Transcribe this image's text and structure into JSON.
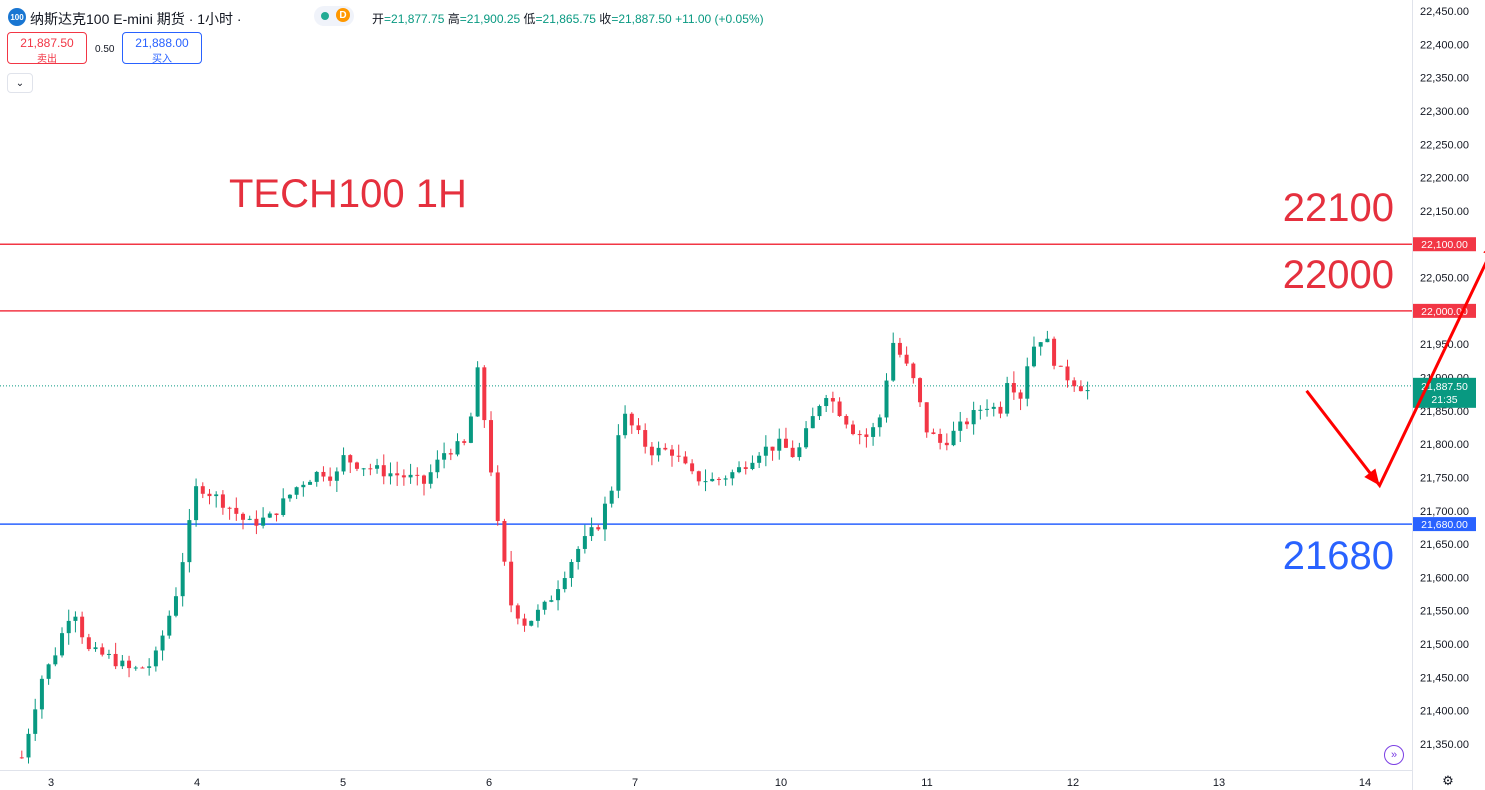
{
  "header": {
    "logo_text": "100",
    "title": "纳斯达克100 E-mini 期货 · 1小时 ·",
    "interval_badge": "D",
    "open_label": "开",
    "open_value": "=21,877.75",
    "high_label": "高",
    "high_value": "=21,900.25",
    "low_label": "低",
    "low_value": "=21,865.75",
    "close_label": "收",
    "close_value": "=21,887.50",
    "change_value": "+11.00 (+0.05%)"
  },
  "trade": {
    "sell_price": "21,887.50",
    "sell_label": "卖出",
    "spread": "0.50",
    "buy_price": "21,888.00",
    "buy_label": "买入",
    "collapse": "⌄"
  },
  "annotations": {
    "title": "TECH100 1H",
    "level_22100": "22100",
    "level_22000": "22000",
    "level_21680": "21680"
  },
  "colors": {
    "up": "#089981",
    "down": "#f23645",
    "resistance": "#e5303e",
    "support": "#2962ff",
    "arrow": "#ff0000"
  },
  "icons": {
    "settings": "gear-icon",
    "goto_realtime": "goto-realtime-icon"
  },
  "chart_data": {
    "type": "candlestick",
    "title": "TECH100 1H",
    "ylim": [
      21320,
      22470
    ],
    "y_ticks": [
      "22,450.00",
      "22,400.00",
      "22,350.00",
      "22,300.00",
      "22,250.00",
      "22,200.00",
      "22,150.00",
      "22,100.00",
      "22,050.00",
      "22,000.00",
      "21,950.00",
      "21,900.00",
      "21,850.00",
      "21,800.00",
      "21,750.00",
      "21,700.00",
      "21,650.00",
      "21,600.00",
      "21,550.00",
      "21,500.00",
      "21,450.00",
      "21,400.00",
      "21,350.00"
    ],
    "x_ticks": [
      "3",
      "4",
      "5",
      "6",
      "7",
      "10",
      "11",
      "12",
      "13",
      "14"
    ],
    "horizontal_lines": [
      {
        "value": 22100,
        "label": "22,100.00",
        "color": "#f23645"
      },
      {
        "value": 22000,
        "label": "22,000.00",
        "color": "#f23645"
      },
      {
        "value": 21680,
        "label": "21,680.00",
        "color": "#2962ff"
      }
    ],
    "last_price": {
      "value": 21887.5,
      "label": "21,887.50",
      "countdown": "21:35"
    },
    "projection": [
      {
        "x": 11.6,
        "y": 21880
      },
      {
        "x": 12.1,
        "y": 21738
      },
      {
        "x": 12.9,
        "y": 22105
      }
    ],
    "anchors": [
      [
        2.8,
        21330
      ],
      [
        2.95,
        21460
      ],
      [
        3.0,
        21470
      ],
      [
        3.15,
        21560
      ],
      [
        3.25,
        21490
      ],
      [
        3.4,
        21480
      ],
      [
        3.55,
        21460
      ],
      [
        3.7,
        21470
      ],
      [
        3.85,
        21570
      ],
      [
        3.95,
        21680
      ],
      [
        4.0,
        21740
      ],
      [
        4.2,
        21710
      ],
      [
        4.35,
        21680
      ],
      [
        4.5,
        21690
      ],
      [
        4.7,
        21740
      ],
      [
        4.85,
        21760
      ],
      [
        4.95,
        21750
      ],
      [
        5.0,
        21780
      ],
      [
        5.1,
        21770
      ],
      [
        5.25,
        21760
      ],
      [
        5.45,
        21750
      ],
      [
        5.55,
        21740
      ],
      [
        5.7,
        21790
      ],
      [
        5.85,
        21800
      ],
      [
        5.92,
        21910
      ],
      [
        6.0,
        21790
      ],
      [
        6.05,
        21690
      ],
      [
        6.15,
        21560
      ],
      [
        6.25,
        21530
      ],
      [
        6.4,
        21560
      ],
      [
        6.5,
        21600
      ],
      [
        6.6,
        21640
      ],
      [
        6.75,
        21680
      ],
      [
        6.85,
        21740
      ],
      [
        6.9,
        21850
      ],
      [
        7.0,
        21820
      ],
      [
        7.1,
        21790
      ],
      [
        7.25,
        21790
      ],
      [
        7.4,
        21750
      ],
      [
        7.55,
        21745
      ],
      [
        7.7,
        21760
      ],
      [
        7.85,
        21790
      ],
      [
        8.0,
        21800
      ],
      [
        8.1,
        21780
      ],
      [
        8.2,
        21830
      ],
      [
        8.3,
        21880
      ],
      [
        8.4,
        21850
      ],
      [
        8.5,
        21820
      ],
      [
        8.6,
        21810
      ],
      [
        8.7,
        21850
      ],
      [
        8.75,
        21960
      ],
      [
        8.9,
        21900
      ],
      [
        9.0,
        21820
      ],
      [
        9.1,
        21800
      ],
      [
        9.2,
        21820
      ],
      [
        9.3,
        21840
      ],
      [
        9.4,
        21860
      ],
      [
        9.5,
        21850
      ],
      [
        9.55,
        21900
      ],
      [
        9.65,
        21870
      ],
      [
        9.7,
        21940
      ],
      [
        9.8,
        21965
      ],
      [
        9.9,
        21910
      ],
      [
        10.0,
        21895
      ],
      [
        10.1,
        21880
      ]
    ],
    "candle_count": 160
  }
}
